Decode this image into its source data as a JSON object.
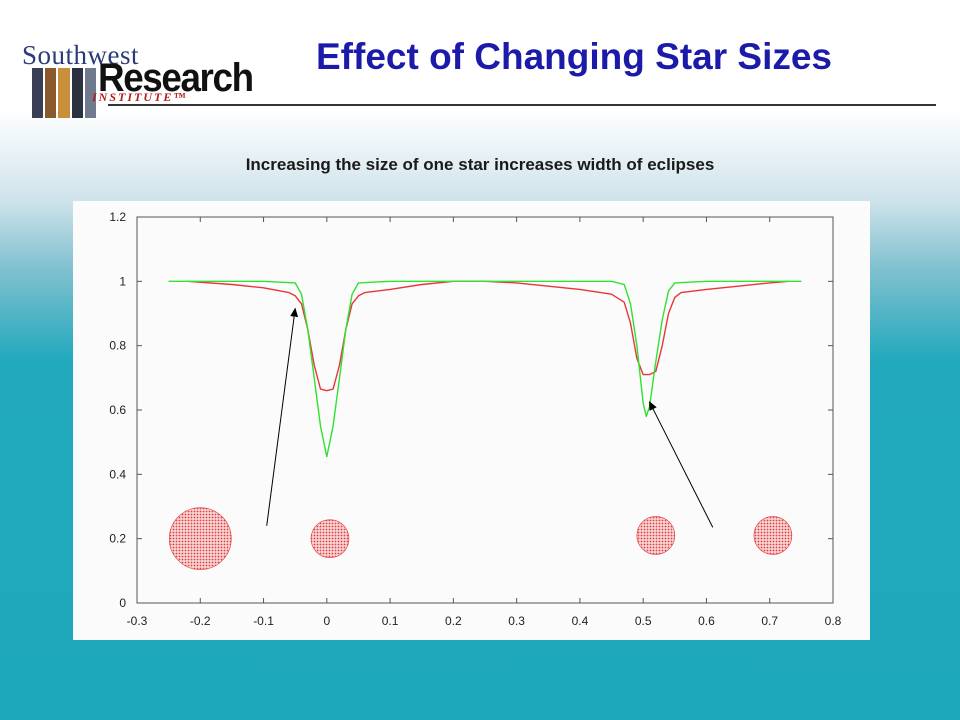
{
  "header": {
    "logo": {
      "line1": "Southwest",
      "line2": "Research",
      "line3": "INSTITUTE™"
    },
    "title": "Effect of Changing Star Sizes",
    "subtitle": "Increasing the size of one star increases width of eclipses"
  },
  "colors": {
    "title": "#1c1aa8",
    "red_curve": "#e8353a",
    "green_curve": "#2fe22f",
    "star_fill": "#e23b3b",
    "background_teal": "#1ea8bc"
  },
  "chart_data": {
    "type": "line",
    "title": "",
    "xlabel": "",
    "ylabel": "",
    "xlim": [
      -0.3,
      0.8
    ],
    "ylim": [
      0,
      1.2
    ],
    "x_ticks": [
      -0.3,
      -0.2,
      -0.1,
      0,
      0.1,
      0.2,
      0.3,
      0.4,
      0.5,
      0.6,
      0.7,
      0.8
    ],
    "x_tick_labels": [
      "-0.3",
      "-0.2",
      "-0.1",
      "0",
      "0.1",
      "0.2",
      "0.3",
      "0.4",
      "0.5",
      "0.6",
      "0.7",
      "0.8"
    ],
    "y_ticks": [
      0,
      0.2,
      0.4,
      0.6,
      0.8,
      1.0,
      1.2
    ],
    "y_tick_labels": [
      "0",
      "0.2",
      "0.4",
      "0.6",
      "0.8",
      "1",
      "1.2"
    ],
    "grid": false,
    "legend": "none",
    "series": [
      {
        "color": "#e8353a",
        "points": [
          [
            -0.22,
            1.0
          ],
          [
            -0.15,
            0.99
          ],
          [
            -0.1,
            0.98
          ],
          [
            -0.06,
            0.965
          ],
          [
            -0.05,
            0.955
          ],
          [
            -0.04,
            0.93
          ],
          [
            -0.03,
            0.85
          ],
          [
            -0.02,
            0.74
          ],
          [
            -0.01,
            0.665
          ],
          [
            0.0,
            0.66
          ],
          [
            0.01,
            0.665
          ],
          [
            0.02,
            0.74
          ],
          [
            0.03,
            0.85
          ],
          [
            0.04,
            0.93
          ],
          [
            0.05,
            0.955
          ],
          [
            0.06,
            0.965
          ],
          [
            0.1,
            0.975
          ],
          [
            0.15,
            0.99
          ],
          [
            0.2,
            1.0
          ],
          [
            0.25,
            1.0
          ],
          [
            0.3,
            0.995
          ],
          [
            0.35,
            0.985
          ],
          [
            0.4,
            0.975
          ],
          [
            0.45,
            0.96
          ],
          [
            0.47,
            0.935
          ],
          [
            0.48,
            0.87
          ],
          [
            0.49,
            0.76
          ],
          [
            0.5,
            0.71
          ],
          [
            0.51,
            0.71
          ],
          [
            0.52,
            0.72
          ],
          [
            0.53,
            0.8
          ],
          [
            0.54,
            0.9
          ],
          [
            0.55,
            0.95
          ],
          [
            0.56,
            0.965
          ],
          [
            0.6,
            0.975
          ],
          [
            0.65,
            0.985
          ],
          [
            0.7,
            0.995
          ],
          [
            0.73,
            1.0
          ]
        ]
      },
      {
        "color": "#2fe22f",
        "points": [
          [
            -0.25,
            1.0
          ],
          [
            -0.1,
            1.0
          ],
          [
            -0.05,
            0.995
          ],
          [
            -0.04,
            0.96
          ],
          [
            -0.03,
            0.85
          ],
          [
            -0.02,
            0.7
          ],
          [
            -0.01,
            0.55
          ],
          [
            0.0,
            0.455
          ],
          [
            0.01,
            0.55
          ],
          [
            0.02,
            0.7
          ],
          [
            0.03,
            0.85
          ],
          [
            0.04,
            0.96
          ],
          [
            0.05,
            0.995
          ],
          [
            0.1,
            1.0
          ],
          [
            0.3,
            1.0
          ],
          [
            0.45,
            1.0
          ],
          [
            0.47,
            0.99
          ],
          [
            0.48,
            0.93
          ],
          [
            0.49,
            0.8
          ],
          [
            0.5,
            0.62
          ],
          [
            0.505,
            0.58
          ],
          [
            0.51,
            0.61
          ],
          [
            0.52,
            0.75
          ],
          [
            0.53,
            0.88
          ],
          [
            0.54,
            0.97
          ],
          [
            0.55,
            0.995
          ],
          [
            0.6,
            1.0
          ],
          [
            0.75,
            1.0
          ]
        ]
      }
    ],
    "stars": [
      {
        "x": -0.2,
        "y": 0.2,
        "size": "large"
      },
      {
        "x": 0.005,
        "y": 0.2,
        "size": "small"
      },
      {
        "x": 0.52,
        "y": 0.21,
        "size": "small"
      },
      {
        "x": 0.705,
        "y": 0.21,
        "size": "small"
      }
    ],
    "annotations": [
      {
        "type": "arrow",
        "from": [
          -0.095,
          0.24
        ],
        "to": [
          -0.05,
          0.915
        ]
      },
      {
        "type": "arrow",
        "from": [
          0.61,
          0.235
        ],
        "to": [
          0.51,
          0.625
        ]
      }
    ]
  }
}
